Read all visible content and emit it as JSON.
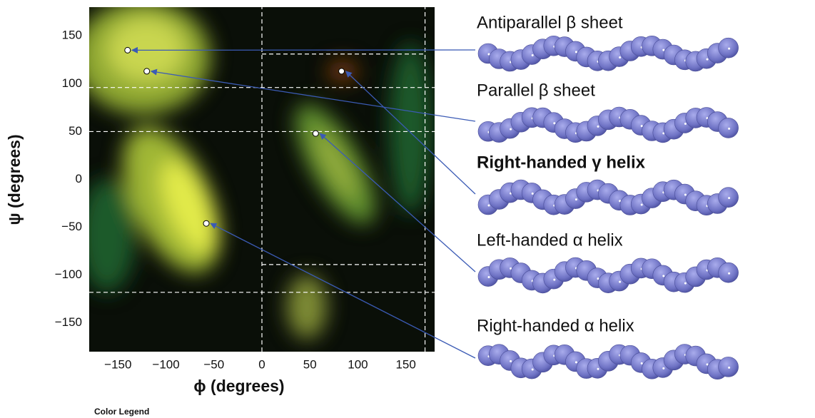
{
  "chart_data": {
    "type": "scatter",
    "xlabel": "ϕ (degrees)",
    "ylabel": "ψ (degrees)",
    "xlim": [
      -180,
      180
    ],
    "ylim": [
      -180,
      180
    ],
    "xticks": [
      {
        "value": -150,
        "label": "−150"
      },
      {
        "value": -100,
        "label": "−100"
      },
      {
        "value": -50,
        "label": "−50"
      },
      0,
      50,
      100,
      150
    ],
    "yticks": [
      {
        "value": -150,
        "label": "−150"
      },
      {
        "value": -100,
        "label": "−100"
      },
      {
        "value": -50,
        "label": "−50"
      },
      0,
      50,
      100,
      150
    ],
    "guide_color": "#ffffff",
    "vlines": [
      {
        "x": 0,
        "ymin": -180,
        "ymax": 180
      },
      {
        "x": 170,
        "ymin": -180,
        "ymax": 180
      }
    ],
    "hlines": [
      {
        "y": 96,
        "xmin": -180,
        "xmax": 180
      },
      {
        "y": 50,
        "xmin": -180,
        "xmax": 180
      },
      {
        "y": -118,
        "xmin": -180,
        "xmax": 180
      },
      {
        "y": 131,
        "xmin": 0,
        "xmax": 170
      },
      {
        "y": -89,
        "xmin": 0,
        "xmax": 170
      }
    ],
    "series": [
      {
        "x": [
          -140,
          -120,
          83,
          56,
          -58
        ],
        "values": [
          135,
          113,
          113,
          48,
          -46
        ],
        "color": "#ffffff"
      }
    ],
    "annotations": [
      {
        "label": "Antiparallel β sheet",
        "bold": false
      },
      {
        "label": "Parallel β sheet",
        "bold": false
      },
      {
        "label": "Right-handed γ helix",
        "bold": true
      },
      {
        "label": "Left-handed α helix",
        "bold": false
      },
      {
        "label": "Right-handed α helix",
        "bold": false
      }
    ],
    "arrow_color": "#3b5bb5",
    "legend_title": "Color Legend"
  }
}
